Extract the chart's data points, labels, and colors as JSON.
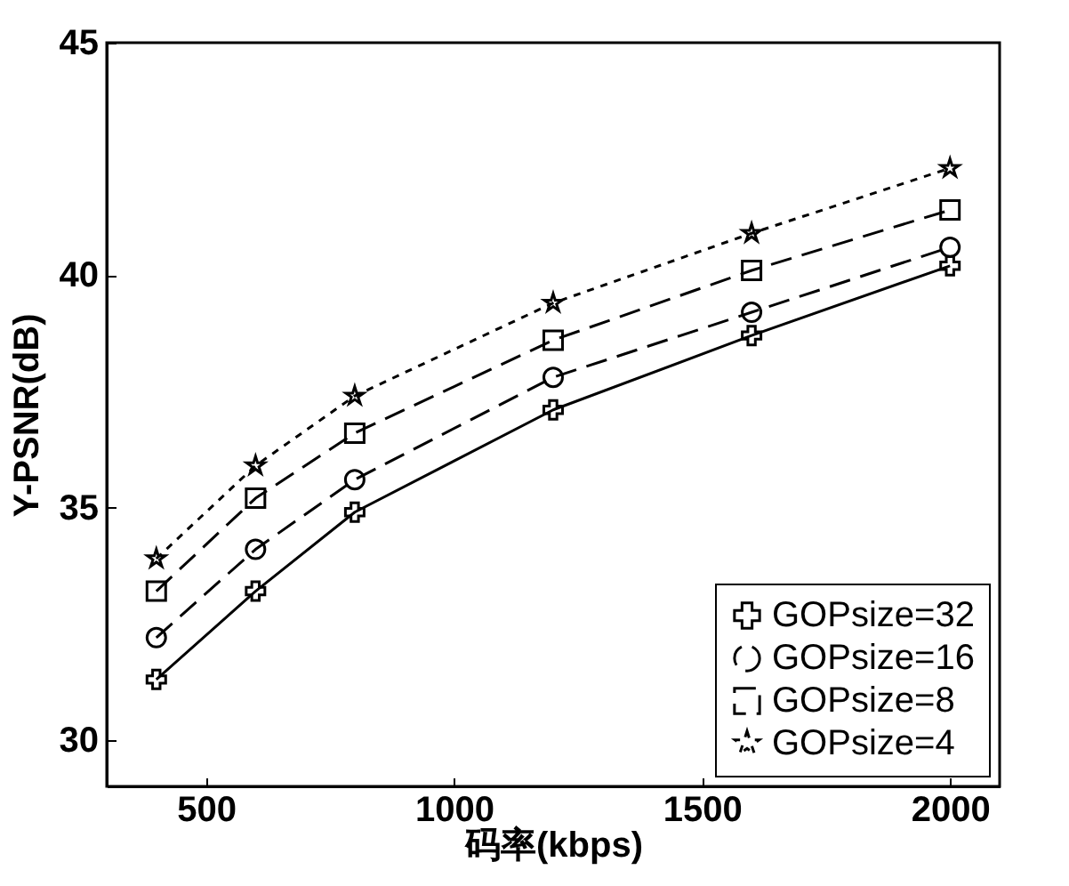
{
  "chart_data": {
    "type": "line",
    "xlabel": "码率(kbps)",
    "ylabel": "Y-PSNR(dB)",
    "x": [
      400,
      600,
      800,
      1200,
      1600,
      2000
    ],
    "xlim": [
      300,
      2100
    ],
    "xticks": [
      500,
      1000,
      1500,
      2000
    ],
    "ylim": [
      29,
      45
    ],
    "yticks": [
      30,
      35,
      40,
      45
    ],
    "grid": false,
    "legend": "bottom right",
    "series": [
      {
        "name": "GOPsize=32",
        "color": "#000000",
        "marker": "cross",
        "line_style": "solid",
        "values": [
          31.3,
          33.2,
          34.9,
          37.1,
          38.7,
          40.2
        ]
      },
      {
        "name": "GOPsize=16",
        "color": "#000000",
        "marker": "circle",
        "line_style": "dashed",
        "values": [
          32.2,
          34.1,
          35.6,
          37.8,
          39.2,
          40.6
        ]
      },
      {
        "name": "GOPsize=8",
        "color": "#000000",
        "marker": "square",
        "line_style": "dashed",
        "values": [
          33.2,
          35.2,
          36.6,
          38.6,
          40.1,
          41.4
        ]
      },
      {
        "name": "GOPsize=4",
        "color": "#000000",
        "marker": "star",
        "line_style": "dotted",
        "values": [
          33.9,
          35.9,
          37.4,
          39.4,
          40.9,
          42.3
        ]
      }
    ]
  }
}
